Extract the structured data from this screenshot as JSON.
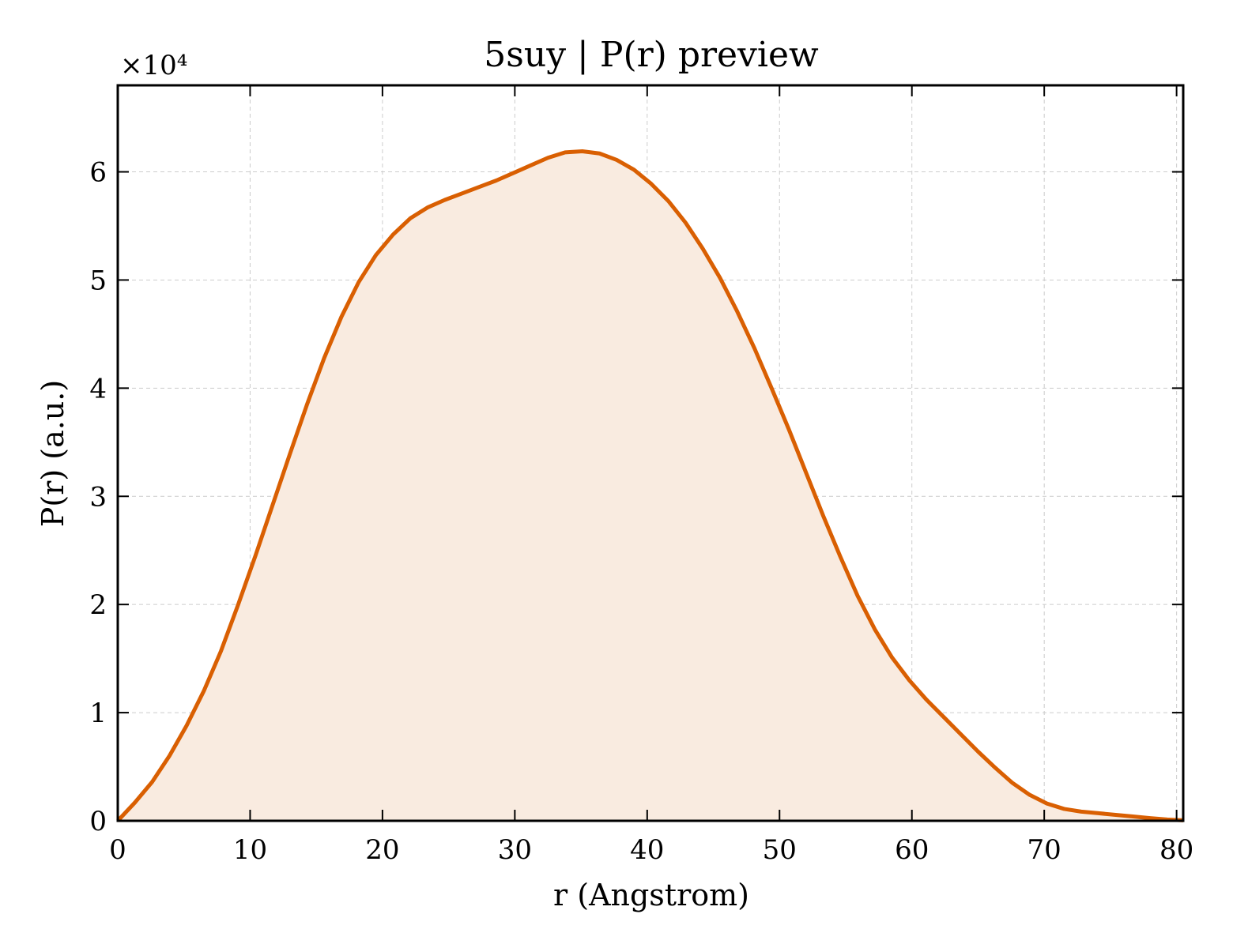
{
  "chart_data": {
    "type": "area",
    "title": "5suy | P(r) preview",
    "xlabel": "r (Angstrom)",
    "ylabel": "P(r) (a.u.)",
    "y_offset_label": "×10⁴",
    "xlim": [
      0,
      80.5
    ],
    "ylim": [
      0,
      68000
    ],
    "xticks": [
      0,
      10,
      20,
      30,
      40,
      50,
      60,
      70,
      80
    ],
    "yticks": [
      0,
      10000,
      20000,
      30000,
      40000,
      50000,
      60000
    ],
    "ytick_labels": [
      "0",
      "1",
      "2",
      "3",
      "4",
      "5",
      "6"
    ],
    "grid": true,
    "line_color": "#d95f02",
    "fill_color": "#f9ebe0",
    "series": [
      {
        "x": [
          0,
          1.3,
          2.6,
          3.9,
          5.2,
          6.5,
          7.8,
          9.1,
          10.4,
          11.7,
          13.0,
          14.3,
          15.6,
          16.9,
          18.2,
          19.5,
          20.8,
          22.1,
          23.4,
          24.7,
          26.0,
          27.3,
          28.6,
          29.9,
          31.2,
          32.5,
          33.8,
          35.1,
          36.4,
          37.7,
          39.0,
          40.3,
          41.6,
          42.9,
          44.2,
          45.5,
          46.8,
          48.1,
          49.4,
          50.7,
          52.0,
          53.3,
          54.6,
          55.9,
          57.2,
          58.5,
          59.8,
          61.1,
          62.4,
          63.7,
          65.0,
          66.3,
          67.6,
          68.9,
          70.2,
          71.5,
          72.8,
          74.1,
          75.4,
          76.7,
          78.0,
          79.3,
          80.5
        ],
        "y": [
          0,
          1700,
          3600,
          6000,
          8800,
          12000,
          15700,
          20000,
          24500,
          29200,
          33900,
          38500,
          42800,
          46600,
          49800,
          52300,
          54200,
          55700,
          56700,
          57400,
          58000,
          58600,
          59200,
          59900,
          60600,
          61300,
          61800,
          61900,
          61700,
          61100,
          60200,
          58900,
          57300,
          55300,
          52900,
          50200,
          47100,
          43700,
          40000,
          36200,
          32200,
          28200,
          24400,
          20800,
          17700,
          15100,
          13000,
          11200,
          9600,
          8000,
          6400,
          4900,
          3500,
          2400,
          1600,
          1100,
          850,
          700,
          550,
          400,
          250,
          120,
          50
        ]
      }
    ]
  }
}
